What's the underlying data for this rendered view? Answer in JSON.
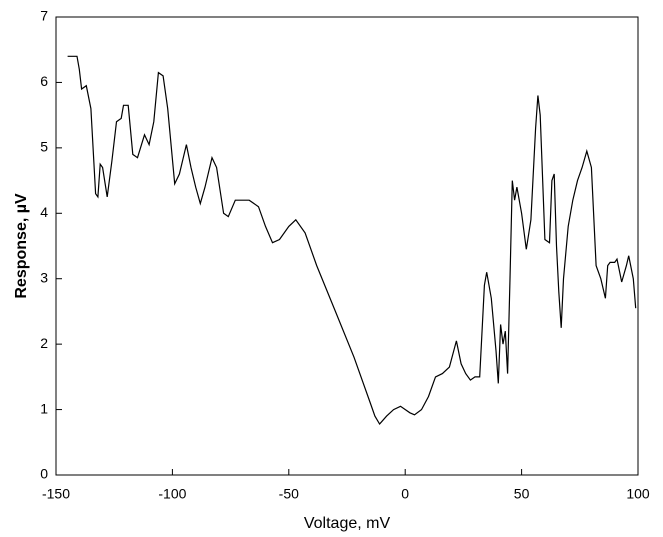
{
  "chart_data": {
    "type": "line",
    "x_label": "Voltage, mV",
    "y_label": "Response, µV",
    "xlim": [
      -150,
      100
    ],
    "xticks": [
      -150,
      -100,
      -50,
      0,
      50,
      100
    ],
    "ylim": [
      0,
      7
    ],
    "yticks": [
      0,
      1,
      2,
      3,
      4,
      5,
      6,
      7
    ],
    "color": "#000000",
    "x": [
      -145,
      -141,
      -140,
      -139,
      -137,
      -135,
      -133,
      -132,
      -131,
      -130,
      -128,
      -126,
      -124,
      -122,
      -121,
      -119,
      -117,
      -115,
      -112,
      -110,
      -108,
      -106,
      -104,
      -102,
      -99,
      -97,
      -94,
      -92,
      -90,
      -88,
      -86,
      -83,
      -81,
      -78,
      -76,
      -73,
      -70,
      -67,
      -63,
      -60,
      -57,
      -54,
      -50,
      -47,
      -43,
      -38,
      -30,
      -22,
      -15,
      -13,
      -11,
      -8,
      -5,
      -2,
      2,
      4,
      7,
      10,
      13,
      16,
      19,
      22,
      24,
      26,
      28,
      30,
      32,
      34,
      35,
      37,
      39,
      40,
      41,
      42,
      43,
      44,
      45,
      46,
      47,
      48,
      50,
      52,
      54,
      56,
      57,
      58,
      60,
      62,
      63,
      64,
      65,
      66,
      67,
      68,
      70,
      72,
      74,
      76,
      78,
      80,
      82,
      84,
      86,
      87,
      88,
      90,
      91,
      93,
      95,
      96,
      98,
      99
    ],
    "values": [
      6.4,
      6.4,
      6.2,
      5.9,
      5.95,
      5.6,
      4.3,
      4.25,
      4.75,
      4.7,
      4.25,
      4.8,
      5.4,
      5.45,
      5.65,
      5.65,
      4.9,
      4.85,
      5.2,
      5.05,
      5.4,
      6.15,
      6.1,
      5.6,
      4.45,
      4.6,
      5.05,
      4.7,
      4.4,
      4.15,
      4.4,
      4.85,
      4.7,
      4.0,
      3.95,
      4.2,
      4.2,
      4.2,
      4.1,
      3.8,
      3.55,
      3.6,
      3.8,
      3.9,
      3.7,
      3.2,
      2.5,
      1.8,
      1.1,
      0.9,
      0.78,
      0.9,
      1.0,
      1.05,
      0.95,
      0.92,
      1.0,
      1.2,
      1.5,
      1.55,
      1.65,
      2.05,
      1.7,
      1.55,
      1.45,
      1.5,
      1.5,
      2.9,
      3.1,
      2.7,
      1.9,
      1.4,
      2.3,
      2.0,
      2.2,
      1.55,
      3.0,
      4.5,
      4.2,
      4.4,
      4.0,
      3.45,
      3.9,
      5.3,
      5.8,
      5.5,
      3.6,
      3.55,
      4.5,
      4.6,
      3.5,
      2.8,
      2.25,
      3.0,
      3.8,
      4.2,
      4.5,
      4.7,
      4.95,
      4.7,
      3.2,
      3.0,
      2.7,
      3.2,
      3.25,
      3.25,
      3.3,
      2.95,
      3.2,
      3.35,
      3.0,
      2.55
    ]
  }
}
